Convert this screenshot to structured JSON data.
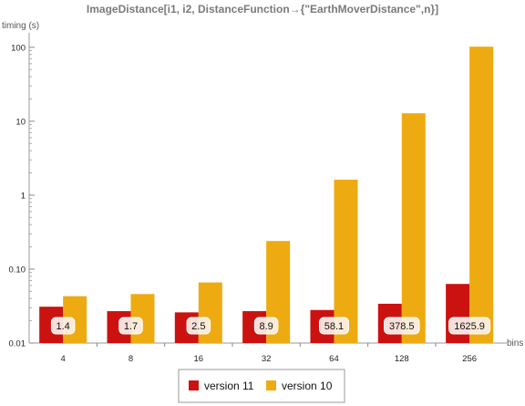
{
  "chart_data": {
    "type": "bar",
    "title": "ImageDistance[i1, i2, DistanceFunction→{\"EarthMoverDistance\",n}]",
    "ylabel": "timing (s)",
    "xlabel": "bins",
    "yscale": "log",
    "ylim": [
      0.01,
      140
    ],
    "yticks": [
      {
        "value": 0.01,
        "label": "0.01"
      },
      {
        "value": 0.1,
        "label": "0.10"
      },
      {
        "value": 1,
        "label": "1"
      },
      {
        "value": 10,
        "label": "10"
      },
      {
        "value": 100,
        "label": "100"
      }
    ],
    "categories": [
      "4",
      "8",
      "16",
      "32",
      "64",
      "128",
      "256"
    ],
    "series": [
      {
        "name": "version 11",
        "color": "#cc1111",
        "values": [
          0.031,
          0.027,
          0.026,
          0.027,
          0.028,
          0.034,
          0.063
        ]
      },
      {
        "name": "version 10",
        "color": "#eeaa11",
        "values": [
          0.043,
          0.046,
          0.066,
          0.24,
          1.62,
          12.8,
          102
        ]
      }
    ],
    "bar_labels": [
      "1.4",
      "1.7",
      "2.5",
      "8.9",
      "58.1",
      "378.5",
      "1625.9"
    ],
    "grid": false,
    "legend_position": "bottom"
  }
}
